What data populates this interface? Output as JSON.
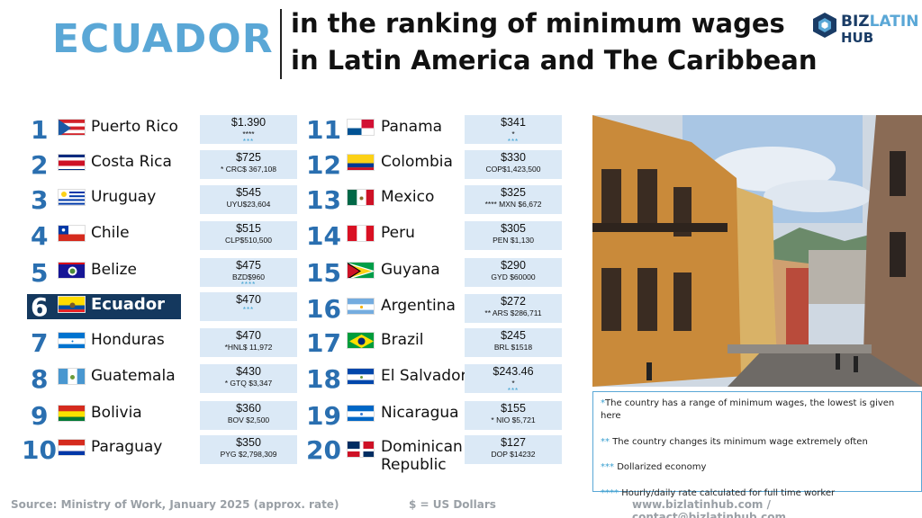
{
  "header": {
    "country": "ECUADOR",
    "title_line1": "in the ranking of minimum wages",
    "title_line2": "in Latin America and The Caribbean"
  },
  "logo": {
    "word1a": "BIZ",
    "word1b": "LATIN",
    "word2": "HUB"
  },
  "rankings": [
    {
      "rank": "1",
      "country": "Puerto Rico",
      "usd": "$1.390",
      "local": "****",
      "notes": "***",
      "flag": "puerto-rico-flag"
    },
    {
      "rank": "2",
      "country": "Costa Rica",
      "usd": "$725",
      "local": "* CRC$ 367,108",
      "notes": "",
      "flag": "costa-rica-flag"
    },
    {
      "rank": "3",
      "country": "Uruguay",
      "usd": "$545",
      "local": "UYU$23,604",
      "notes": "",
      "flag": "uruguay-flag"
    },
    {
      "rank": "4",
      "country": "Chile",
      "usd": "$515",
      "local": "CLP$510,500",
      "notes": "",
      "flag": "chile-flag"
    },
    {
      "rank": "5",
      "country": "Belize",
      "usd": "$475",
      "local": "BZD$960",
      "notes": "****",
      "flag": "belize-flag"
    },
    {
      "rank": "6",
      "country": "Ecuador",
      "usd": "$470",
      "local": "",
      "notes": "***",
      "flag": "ecuador-flag"
    },
    {
      "rank": "7",
      "country": "Honduras",
      "usd": "$470",
      "local": "*HNL$ 11,972",
      "notes": "",
      "flag": "honduras-flag"
    },
    {
      "rank": "8",
      "country": "Guatemala",
      "usd": "$430",
      "local": "* GTQ $3,347",
      "notes": "",
      "flag": "guatemala-flag"
    },
    {
      "rank": "9",
      "country": "Bolivia",
      "usd": "$360",
      "local": "BOV $2,500",
      "notes": "",
      "flag": "bolivia-flag"
    },
    {
      "rank": "10",
      "country": "Paraguay",
      "usd": "$350",
      "local": "PYG $2,798,309",
      "notes": "",
      "flag": "paraguay-flag"
    },
    {
      "rank": "11",
      "country": "Panama",
      "usd": "$341",
      "local": "*",
      "notes": "***",
      "flag": "panama-flag"
    },
    {
      "rank": "12",
      "country": "Colombia",
      "usd": "$330",
      "local": "COP$1,423,500",
      "notes": "",
      "flag": "colombia-flag"
    },
    {
      "rank": "13",
      "country": "Mexico",
      "usd": "$325",
      "local": "**** MXN $6,672",
      "notes": "",
      "flag": "mexico-flag"
    },
    {
      "rank": "14",
      "country": "Peru",
      "usd": "$305",
      "local": "PEN $1,130",
      "notes": "",
      "flag": "peru-flag"
    },
    {
      "rank": "15",
      "country": "Guyana",
      "usd": "$290",
      "local": "GYD $60000",
      "notes": "",
      "flag": "guyana-flag"
    },
    {
      "rank": "16",
      "country": "Argentina",
      "usd": "$272",
      "local": "** ARS $286,711",
      "notes": "",
      "flag": "argentina-flag"
    },
    {
      "rank": "17",
      "country": "Brazil",
      "usd": "$245",
      "local": "BRL $1518",
      "notes": "",
      "flag": "brazil-flag"
    },
    {
      "rank": "18",
      "country": "El Salvador",
      "usd": "$243.46",
      "local": "*",
      "notes": "***",
      "flag": "el-salvador-flag"
    },
    {
      "rank": "19",
      "country": "Nicaragua",
      "usd": "$155",
      "local": "* NIO $5,721",
      "notes": "",
      "flag": "nicaragua-flag"
    },
    {
      "rank": "20",
      "country": "Dominican",
      "country2": "Republic",
      "usd": "$127",
      "local": "DOP $14232",
      "notes": "",
      "flag": "dominican-republic-flag"
    }
  ],
  "notes": {
    "n1_mark": "*",
    "n1": "The country has a range of minimum wages, the lowest is given here",
    "n2_mark": "**",
    "n2": "The country changes its minimum wage extremely often",
    "n3_mark": "***",
    "n3": "Dollarized economy",
    "n4_mark": "****",
    "n4": "Hourly/daily rate calculated for full time worker"
  },
  "footer": {
    "source": "Source: Ministry of Work, January 2025 (approx. rate)",
    "currency": "$ = US Dollars",
    "contact": "www.bizlatinhub.com / contact@bizlatinhub.com"
  },
  "colors": {
    "accent": "#5aa7d6",
    "rank": "#2a6fb0",
    "highlight": "#14385e",
    "wage_box": "#dbe9f6"
  }
}
